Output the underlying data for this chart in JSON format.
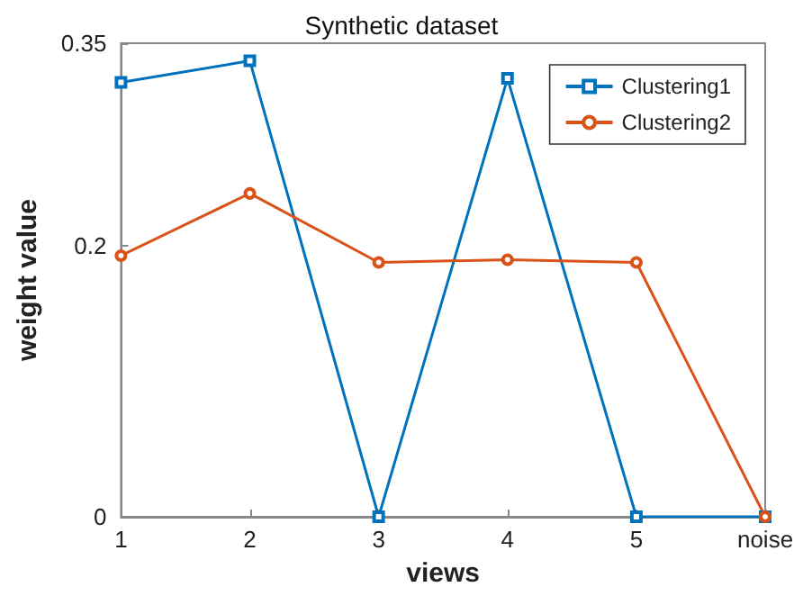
{
  "chart_data": {
    "type": "line",
    "title": "Synthetic dataset",
    "xlabel": "views",
    "ylabel": "weight value",
    "categories": [
      "1",
      "2",
      "3",
      "4",
      "5",
      "noise"
    ],
    "series": [
      {
        "name": "Clustering1",
        "color": "#0072bd",
        "marker": "square",
        "values": [
          0.321,
          0.337,
          0,
          0.324,
          0,
          0
        ]
      },
      {
        "name": "Clustering2",
        "color": "#d95319",
        "marker": "circle",
        "values": [
          0.193,
          0.239,
          0.188,
          0.19,
          0.188,
          0
        ]
      }
    ],
    "ylim": [
      0,
      0.35
    ],
    "yticks": [
      0,
      0.2,
      0.35
    ],
    "grid": false,
    "legend": "top right",
    "line_style": "solid"
  }
}
